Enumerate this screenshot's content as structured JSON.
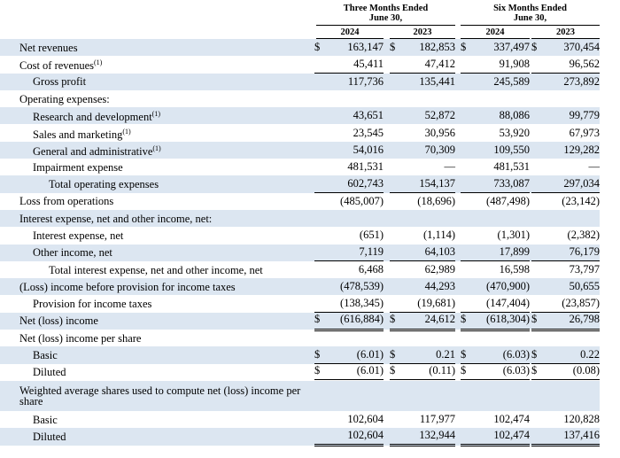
{
  "header": {
    "groups": [
      [
        "Three Months Ended",
        "June 30,"
      ],
      [
        "Six Months Ended",
        "June 30,"
      ]
    ],
    "years": [
      "2024",
      "2023",
      "2024",
      "2023"
    ]
  },
  "rows": [
    {
      "label": "Net revenues",
      "currency": [
        "$",
        "$",
        "$",
        "$"
      ],
      "values": [
        "163,147",
        "182,853",
        "337,497",
        "370,454"
      ]
    },
    {
      "label": "Cost of revenues",
      "note": "(1)",
      "values": [
        "45,411",
        "47,412",
        "91,908",
        "96,562"
      ]
    },
    {
      "label": "Gross profit",
      "values": [
        "117,736",
        "135,441",
        "245,589",
        "273,892"
      ]
    },
    {
      "label": "Operating expenses:"
    },
    {
      "label": "Research and development",
      "note": "(1)",
      "values": [
        "43,651",
        "52,872",
        "88,086",
        "99,779"
      ]
    },
    {
      "label": "Sales and marketing",
      "note": "(1)",
      "values": [
        "23,545",
        "30,956",
        "53,920",
        "67,973"
      ]
    },
    {
      "label": "General and administrative",
      "note": "(1)",
      "values": [
        "54,016",
        "70,309",
        "109,550",
        "129,282"
      ]
    },
    {
      "label": "Impairment expense",
      "values": [
        "481,531",
        "—",
        "481,531",
        "—"
      ]
    },
    {
      "label": "Total operating expenses",
      "values": [
        "602,743",
        "154,137",
        "733,087",
        "297,034"
      ]
    },
    {
      "label": "Loss from operations",
      "values": [
        "(485,007)",
        "(18,696)",
        "(487,498)",
        "(23,142)"
      ]
    },
    {
      "label": "Interest expense, net and other income, net:"
    },
    {
      "label": "Interest expense, net",
      "values": [
        "(651)",
        "(1,114)",
        "(1,301)",
        "(2,382)"
      ]
    },
    {
      "label": "Other income, net",
      "values": [
        "7,119",
        "64,103",
        "17,899",
        "76,179"
      ]
    },
    {
      "label": "Total interest expense, net and other income, net",
      "values": [
        "6,468",
        "62,989",
        "16,598",
        "73,797"
      ]
    },
    {
      "label": "(Loss) income before provision for income taxes",
      "values": [
        "(478,539)",
        "44,293",
        "(470,900)",
        "50,655"
      ]
    },
    {
      "label": "Provision for income taxes",
      "values": [
        "(138,345)",
        "(19,681)",
        "(147,404)",
        "(23,857)"
      ]
    },
    {
      "label": "Net (loss) income",
      "currency": [
        "$",
        "$",
        "$",
        "$"
      ],
      "values": [
        "(616,884)",
        "24,612",
        "(618,304)",
        "26,798"
      ]
    },
    {
      "label": "Net (loss) income per share"
    },
    {
      "label": "Basic",
      "currency": [
        "$",
        "$",
        "$",
        "$"
      ],
      "values": [
        "(6.01)",
        "0.21",
        "(6.03)",
        "0.22"
      ]
    },
    {
      "label": "Diluted",
      "currency": [
        "$",
        "$",
        "$",
        "$"
      ],
      "values": [
        "(6.01)",
        "(0.11)",
        "(6.03)",
        "(0.08)"
      ]
    },
    {
      "label": "Weighted average shares used to compute net (loss) income per share"
    },
    {
      "label": "Basic",
      "values": [
        "102,604",
        "117,977",
        "102,474",
        "120,828"
      ]
    },
    {
      "label": "Diluted",
      "values": [
        "102,604",
        "132,944",
        "102,474",
        "137,416"
      ]
    }
  ]
}
